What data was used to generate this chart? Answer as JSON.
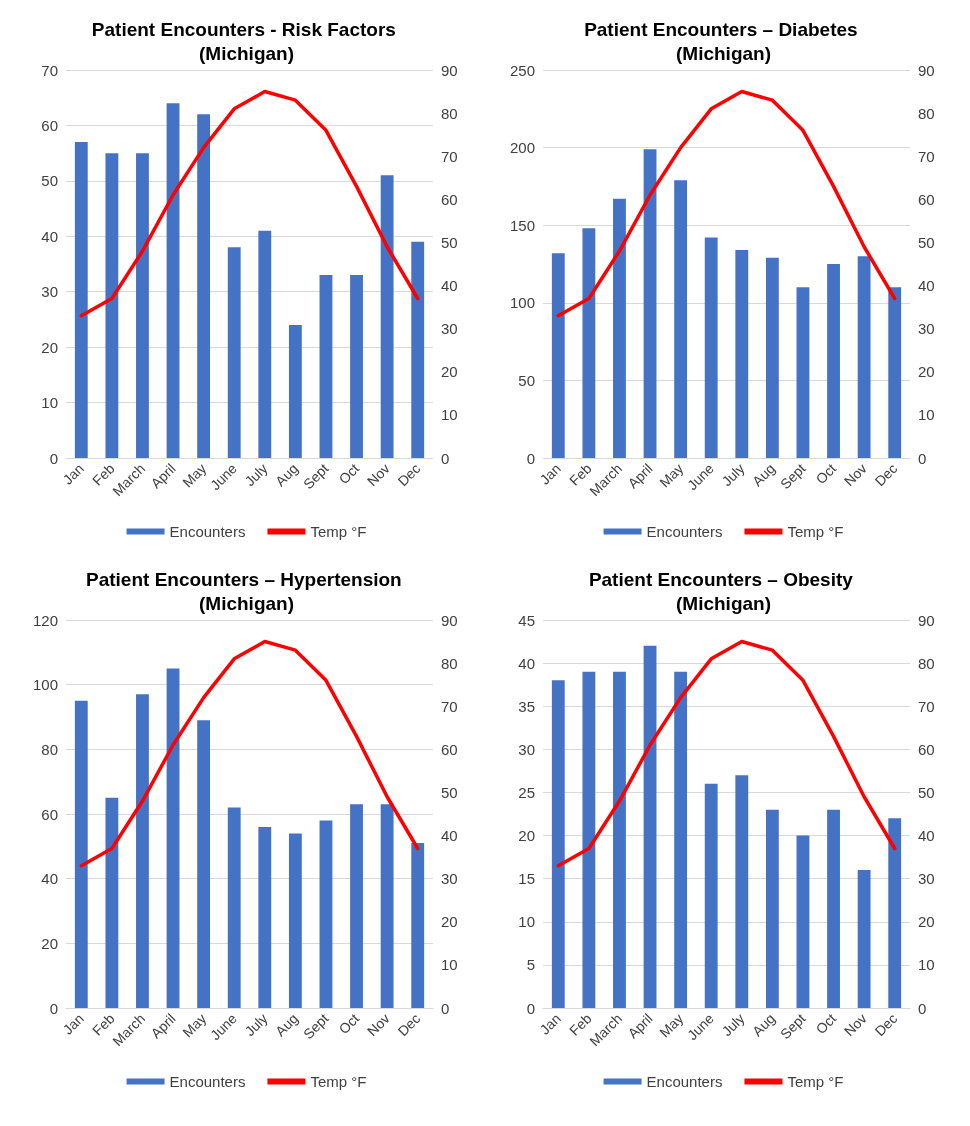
{
  "chart_data": [
    {
      "type": "bar",
      "title": "Patient Encounters - Risk Factors (Michigan)",
      "categories": [
        "Jan",
        "Feb",
        "March",
        "April",
        "May",
        "June",
        "July",
        "Aug",
        "Sept",
        "Oct",
        "Nov",
        "Dec"
      ],
      "series": [
        {
          "name": "Encounters",
          "color": "#4472c4",
          "values": [
            57,
            55,
            55,
            64,
            62,
            38,
            41,
            24,
            33,
            33,
            51,
            39
          ]
        },
        {
          "name": "Temp °F",
          "type": "line",
          "axis": "y2",
          "color": "#ff0000",
          "values": [
            33,
            37,
            48,
            61,
            72,
            81,
            85,
            83,
            76,
            63,
            49,
            37
          ]
        }
      ],
      "ylim": [
        0,
        70
      ],
      "yticks": [
        0,
        10,
        20,
        30,
        40,
        50,
        60,
        70
      ],
      "y2lim": [
        0,
        90
      ],
      "y2ticks": [
        0,
        10,
        20,
        30,
        40,
        50,
        60,
        70,
        80,
        90
      ],
      "grid": "y",
      "legend": "bottom",
      "marker": "none"
    },
    {
      "type": "bar",
      "title": "Patient Encounters – Diabetes (Michigan)",
      "categories": [
        "Jan",
        "Feb",
        "March",
        "April",
        "May",
        "June",
        "July",
        "Aug",
        "Sept",
        "Oct",
        "Nov",
        "Dec"
      ],
      "series": [
        {
          "name": "Encounters",
          "color": "#4472c4",
          "values": [
            132,
            148,
            167,
            199,
            179,
            142,
            134,
            129,
            110,
            125,
            130,
            110
          ]
        },
        {
          "name": "Temp °F",
          "type": "line",
          "axis": "y2",
          "color": "#ff0000",
          "values": [
            33,
            37,
            48,
            61,
            72,
            81,
            85,
            83,
            76,
            63,
            49,
            37
          ]
        }
      ],
      "ylim": [
        0,
        250
      ],
      "yticks": [
        0,
        50,
        100,
        150,
        200,
        250
      ],
      "y2lim": [
        0,
        90
      ],
      "y2ticks": [
        0,
        10,
        20,
        30,
        40,
        50,
        60,
        70,
        80,
        90
      ],
      "grid": "y",
      "legend": "bottom",
      "marker": "none"
    },
    {
      "type": "bar",
      "title": "Patient Encounters – Hypertension (Michigan)",
      "categories": [
        "Jan",
        "Feb",
        "March",
        "April",
        "May",
        "June",
        "July",
        "Aug",
        "Sept",
        "Oct",
        "Nov",
        "Dec"
      ],
      "series": [
        {
          "name": "Encounters",
          "color": "#4472c4",
          "values": [
            95,
            65,
            97,
            105,
            89,
            62,
            56,
            54,
            58,
            63,
            63,
            51
          ]
        },
        {
          "name": "Temp °F",
          "type": "line",
          "axis": "y2",
          "color": "#ff0000",
          "values": [
            33,
            37,
            48,
            61,
            72,
            81,
            85,
            83,
            76,
            63,
            49,
            37
          ]
        }
      ],
      "ylim": [
        0,
        120
      ],
      "yticks": [
        0,
        20,
        40,
        60,
        80,
        100,
        120
      ],
      "y2lim": [
        0,
        90
      ],
      "y2ticks": [
        0,
        10,
        20,
        30,
        40,
        50,
        60,
        70,
        80,
        90
      ],
      "grid": "y",
      "legend": "bottom",
      "marker": "none"
    },
    {
      "type": "bar",
      "title": "Patient Encounters – Obesity (Michigan)",
      "categories": [
        "Jan",
        "Feb",
        "March",
        "April",
        "May",
        "June",
        "July",
        "Aug",
        "Sept",
        "Oct",
        "Nov",
        "Dec"
      ],
      "series": [
        {
          "name": "Encounters",
          "color": "#4472c4",
          "values": [
            38,
            39,
            39,
            42,
            39,
            26,
            27,
            23,
            20,
            23,
            16,
            22
          ]
        },
        {
          "name": "Temp °F",
          "type": "line",
          "axis": "y2",
          "color": "#ff0000",
          "values": [
            33,
            37,
            48,
            61,
            72,
            81,
            85,
            83,
            76,
            63,
            49,
            37
          ]
        }
      ],
      "ylim": [
        0,
        45
      ],
      "yticks": [
        0,
        5,
        10,
        15,
        20,
        25,
        30,
        35,
        40,
        45
      ],
      "y2lim": [
        0,
        90
      ],
      "y2ticks": [
        0,
        10,
        20,
        30,
        40,
        50,
        60,
        70,
        80,
        90
      ],
      "grid": "y",
      "legend": "bottom",
      "marker": "none"
    }
  ]
}
